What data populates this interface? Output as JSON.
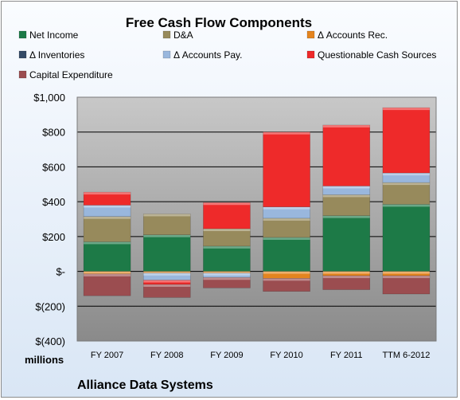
{
  "chart_data": {
    "type": "bar",
    "stacked": true,
    "title": "Free Cash Flow Components",
    "categories": [
      "FY 2007",
      "FY 2008",
      "FY 2009",
      "FY 2010",
      "FY 2011",
      "TTM 6-2012"
    ],
    "unit_label": "millions",
    "company": "Alliance Data Systems",
    "ylim": [
      -400,
      1000
    ],
    "y_ticks": [
      {
        "value": 1000,
        "label": "$1,000"
      },
      {
        "value": 800,
        "label": "$800"
      },
      {
        "value": 600,
        "label": "$600"
      },
      {
        "value": 400,
        "label": "$400"
      },
      {
        "value": 200,
        "label": "$200"
      },
      {
        "value": 0,
        "label": "$-"
      },
      {
        "value": -200,
        "label": "$(200)"
      },
      {
        "value": -400,
        "label": "$(400)"
      }
    ],
    "grid": true,
    "legend_position": "top",
    "series": [
      {
        "name": "Net Income",
        "color": "#1d7a47",
        "values": [
          170,
          210,
          145,
          195,
          320,
          385
        ]
      },
      {
        "name": "D&A",
        "color": "#978a5c",
        "values": [
          145,
          120,
          100,
          110,
          120,
          125
        ]
      },
      {
        "name": "Δ Accounts Rec.",
        "color": "#e4841f",
        "values": [
          -15,
          -10,
          -10,
          -40,
          -25,
          -25
        ]
      },
      {
        "name": "Δ Inventories",
        "color": "#344a66",
        "values": [
          0,
          0,
          0,
          0,
          0,
          0
        ]
      },
      {
        "name": "Δ Accounts Pay.",
        "color": "#99b7dd",
        "values": [
          65,
          -40,
          -25,
          65,
          50,
          55
        ]
      },
      {
        "name": "Questionable Cash Sources",
        "color": "#ee2a2a",
        "values": [
          75,
          -25,
          150,
          430,
          350,
          375
        ]
      },
      {
        "name": "Capital Expenditure",
        "color": "#9b4d50",
        "values": [
          -125,
          -75,
          -60,
          -75,
          -80,
          -105
        ]
      }
    ]
  }
}
